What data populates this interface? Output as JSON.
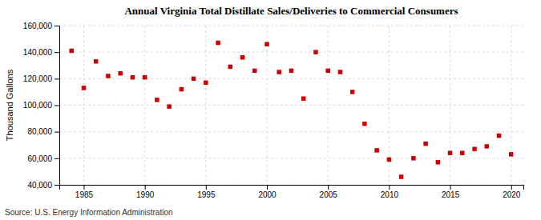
{
  "chart_data": {
    "type": "scatter",
    "title": "Annual Virginia Total Distillate Sales/Deliveries to Commercial Consumers",
    "ylabel": "Thousand Gallons",
    "source": "Source: U.S. Energy Information Administration",
    "x": [
      1984,
      1985,
      1986,
      1987,
      1988,
      1989,
      1990,
      1991,
      1992,
      1993,
      1994,
      1995,
      1996,
      1997,
      1998,
      1999,
      2000,
      2001,
      2002,
      2003,
      2004,
      2005,
      2006,
      2007,
      2008,
      2009,
      2010,
      2011,
      2012,
      2013,
      2014,
      2015,
      2016,
      2017,
      2018,
      2019,
      2020
    ],
    "values": [
      141000,
      113000,
      133000,
      122000,
      124000,
      121000,
      121000,
      104000,
      99000,
      112000,
      120000,
      117000,
      147000,
      129000,
      136000,
      126000,
      146000,
      125000,
      126000,
      105000,
      140000,
      126000,
      125000,
      110000,
      86000,
      66000,
      59000,
      46000,
      60000,
      71000,
      57000,
      64000,
      64000,
      67000,
      69000,
      77000,
      63000
    ],
    "color": "#cc0000",
    "marker": "square",
    "xlim": [
      1983,
      2021
    ],
    "ylim": [
      40000,
      160000
    ],
    "xticks": [
      1985,
      1990,
      1995,
      2000,
      2005,
      2010,
      2015,
      2020
    ],
    "yticks": [
      {
        "value": 40000,
        "label": "40,000"
      },
      {
        "value": 60000,
        "label": "60,000"
      },
      {
        "value": 80000,
        "label": "80,000"
      },
      {
        "value": 100000,
        "label": "100,000"
      },
      {
        "value": 120000,
        "label": "120,000"
      },
      {
        "value": 140000,
        "label": "140,000"
      },
      {
        "value": 160000,
        "label": "160,000"
      }
    ],
    "grid": true
  }
}
